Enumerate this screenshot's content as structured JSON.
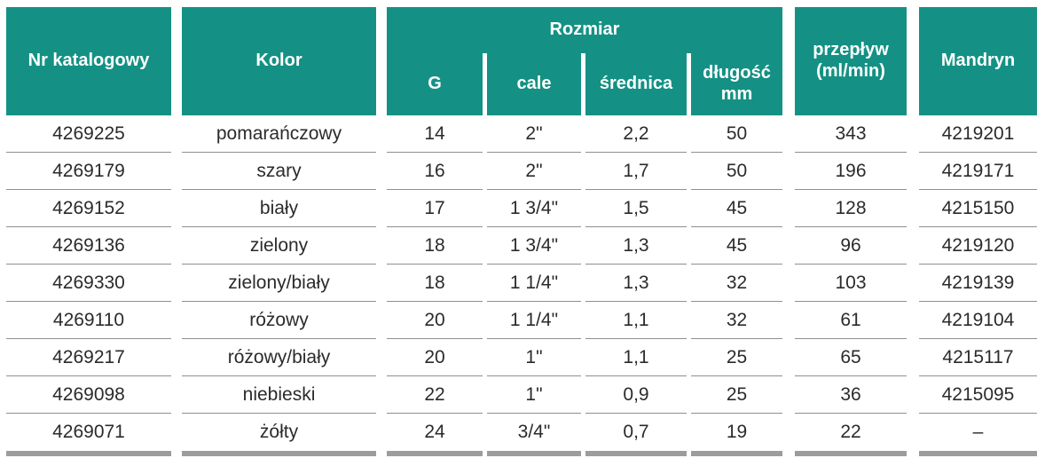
{
  "colors": {
    "header_bg": "#149184",
    "header_text": "#ffffff",
    "row_line": "#8f8f8f",
    "bottom_bar": "#9c9c9c",
    "body_text": "#2b2b2b",
    "background": "#ffffff"
  },
  "table": {
    "header": {
      "catalog": "Nr katalogowy",
      "color": "Kolor",
      "size_group": "Rozmiar",
      "gauge": "G",
      "inches": "cale",
      "diameter": "średnica",
      "length_line1": "długość",
      "length_line2": "mm",
      "flow_line1": "przepływ",
      "flow_line2": "(ml/min)",
      "mandrin": "Mandryn"
    },
    "rows": [
      {
        "catalog": "4269225",
        "color": "pomarańczowy",
        "g": "14",
        "inches": "2\"",
        "diameter": "2,2",
        "length": "50",
        "flow": "343",
        "mandrin": "4219201"
      },
      {
        "catalog": "4269179",
        "color": "szary",
        "g": "16",
        "inches": "2\"",
        "diameter": "1,7",
        "length": "50",
        "flow": "196",
        "mandrin": "4219171"
      },
      {
        "catalog": "4269152",
        "color": "biały",
        "g": "17",
        "inches": "1 3/4\"",
        "diameter": "1,5",
        "length": "45",
        "flow": "128",
        "mandrin": "4215150"
      },
      {
        "catalog": "4269136",
        "color": "zielony",
        "g": "18",
        "inches": "1 3/4\"",
        "diameter": "1,3",
        "length": "45",
        "flow": "96",
        "mandrin": "4219120"
      },
      {
        "catalog": "4269330",
        "color": "zielony/biały",
        "g": "18",
        "inches": "1 1/4\"",
        "diameter": "1,3",
        "length": "32",
        "flow": "103",
        "mandrin": "4219139"
      },
      {
        "catalog": "4269110",
        "color": "różowy",
        "g": "20",
        "inches": "1 1/4\"",
        "diameter": "1,1",
        "length": "32",
        "flow": "61",
        "mandrin": "4219104"
      },
      {
        "catalog": "4269217",
        "color": "różowy/biały",
        "g": "20",
        "inches": "1\"",
        "diameter": "1,1",
        "length": "25",
        "flow": "65",
        "mandrin": "4215117"
      },
      {
        "catalog": "4269098",
        "color": "niebieski",
        "g": "22",
        "inches": "1\"",
        "diameter": "0,9",
        "length": "25",
        "flow": "36",
        "mandrin": "4215095"
      },
      {
        "catalog": "4269071",
        "color": "żółty",
        "g": "24",
        "inches": "3/4\"",
        "diameter": "0,7",
        "length": "19",
        "flow": "22",
        "mandrin": "–"
      }
    ]
  }
}
